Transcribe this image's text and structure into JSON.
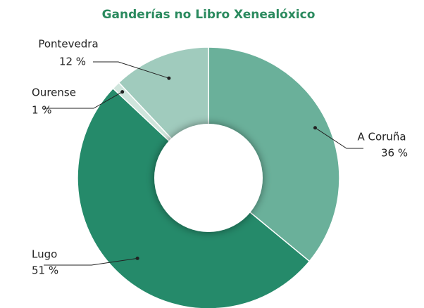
{
  "chart_data": {
    "type": "donut",
    "title": "Ganderías no Libro Xenealóxico",
    "categories": [
      "A Coruña",
      "Lugo",
      "Ourense",
      "Pontevedra"
    ],
    "values": [
      36,
      51,
      1,
      12
    ],
    "value_labels": [
      "36 %",
      "51 %",
      "1 %",
      "12 %"
    ],
    "colors": [
      "#6ab09a",
      "#258a6a",
      "#cfe5dc",
      "#a0cbbd"
    ]
  }
}
